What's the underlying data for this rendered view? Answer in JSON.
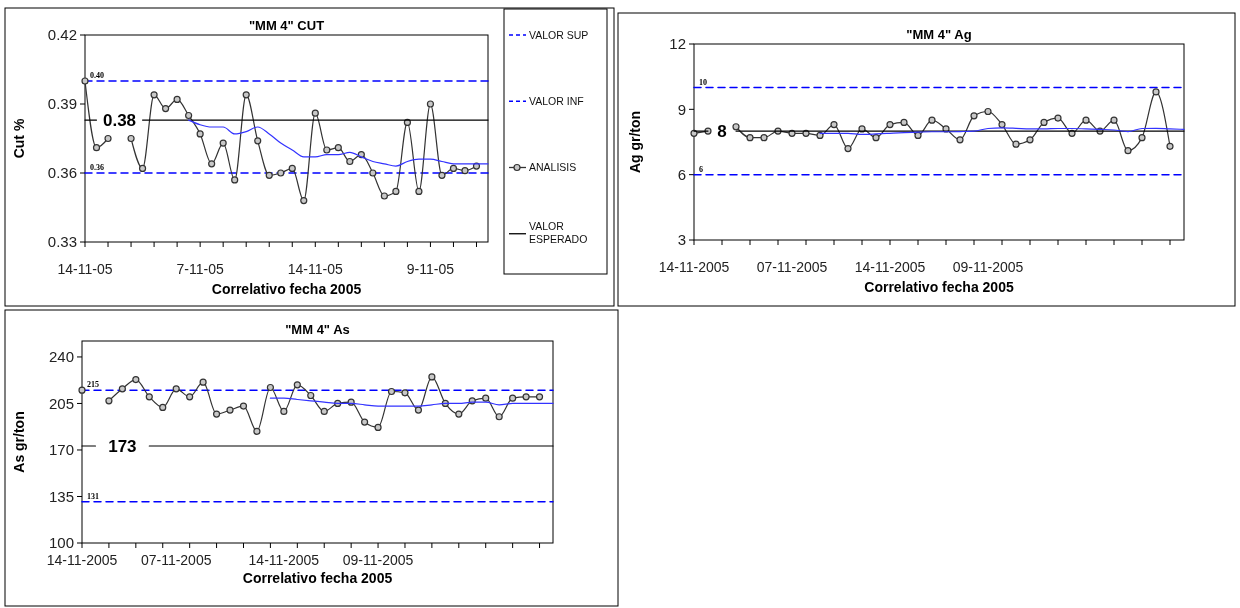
{
  "chart_data": [
    {
      "type": "line",
      "title": "\"MM 4\"  CUT",
      "xlabel": "Correlativo fecha 2005",
      "ylabel": "Cut  %",
      "categories": [
        "14-11-05",
        null,
        null,
        null,
        null,
        null,
        null,
        null,
        null,
        null,
        "7-11-05",
        null,
        null,
        null,
        null,
        null,
        null,
        null,
        null,
        null,
        "14-11-05",
        null,
        null,
        null,
        null,
        null,
        null,
        null,
        null,
        null,
        "9-11-05",
        null,
        null,
        null,
        null,
        null
      ],
      "ylim": [
        0.33,
        0.42
      ],
      "yticks": [
        0.33,
        0.36,
        0.39,
        0.42
      ],
      "legend": "right",
      "series": [
        {
          "name": "VALOR SUP",
          "color": "#0000ff",
          "line_style": "dashed",
          "marker": "none",
          "values": [
            0.4,
            0.4,
            0.4,
            0.4,
            0.4,
            0.4,
            0.4,
            0.4,
            0.4,
            0.4,
            0.4,
            0.4,
            0.4,
            0.4,
            0.4,
            0.4,
            0.4,
            0.4,
            0.4,
            0.4,
            0.4,
            0.4,
            0.4,
            0.4,
            0.4,
            0.4,
            0.4,
            0.4,
            0.4,
            0.4,
            0.4,
            0.4,
            0.4,
            0.4,
            0.4,
            0.4
          ],
          "value_labels": [
            "0.40",
            null,
            null,
            null,
            null,
            null,
            null,
            null,
            null,
            null,
            null,
            null,
            null,
            null,
            null,
            null,
            null,
            null,
            null,
            null,
            null,
            null,
            null,
            null,
            null,
            null,
            null,
            null,
            null,
            null,
            null,
            null,
            null,
            null,
            null,
            null
          ]
        },
        {
          "name": "VALOR INF",
          "color": "#0000ff",
          "line_style": "dashed",
          "marker": "none",
          "values": [
            0.36,
            0.36,
            0.36,
            0.36,
            0.36,
            0.36,
            0.36,
            0.36,
            0.36,
            0.36,
            0.36,
            0.36,
            0.36,
            0.36,
            0.36,
            0.36,
            0.36,
            0.36,
            0.36,
            0.36,
            0.36,
            0.36,
            0.36,
            0.36,
            0.36,
            0.36,
            0.36,
            0.36,
            0.36,
            0.36,
            0.36,
            0.36,
            0.36,
            0.36,
            0.36,
            0.36
          ],
          "value_labels": [
            "0.36",
            null,
            null,
            null,
            null,
            null,
            null,
            null,
            null,
            null,
            null,
            null,
            null,
            null,
            null,
            null,
            null,
            null,
            null,
            null,
            null,
            null,
            null,
            null,
            null,
            null,
            null,
            null,
            null,
            null,
            null,
            null,
            null,
            null,
            null,
            null
          ]
        },
        {
          "name": "ANALISIS",
          "color": "#333333",
          "line_style": "solid",
          "marker": "circle",
          "values": [
            0.4,
            0.371,
            0.375,
            null,
            0.375,
            0.362,
            0.394,
            0.388,
            0.392,
            0.385,
            0.377,
            0.364,
            0.373,
            0.357,
            0.394,
            0.374,
            0.359,
            0.36,
            0.362,
            0.348,
            0.386,
            0.37,
            0.371,
            0.365,
            0.368,
            0.36,
            0.35,
            0.352,
            0.382,
            0.352,
            0.39,
            0.359,
            0.362,
            0.361,
            0.363,
            null
          ]
        },
        {
          "name": "VALOR ESPERADO",
          "color": "#000000",
          "line_style": "solid",
          "marker": "none",
          "values": [
            0.383,
            0.383,
            null,
            null,
            null,
            0.383,
            0.383,
            0.383,
            0.383,
            0.383,
            0.383,
            0.383,
            0.383,
            0.383,
            0.383,
            0.383,
            0.383,
            0.383,
            0.383,
            0.383,
            0.383,
            0.383,
            0.383,
            0.383,
            0.383,
            0.383,
            0.383,
            0.383,
            0.383,
            0.383,
            0.383,
            0.383,
            0.383,
            0.383,
            0.383,
            0.383
          ],
          "value_labels": [
            null,
            null,
            null,
            "0.38",
            null,
            null,
            null,
            null,
            null,
            null,
            null,
            null,
            null,
            null,
            null,
            null,
            null,
            null,
            null,
            null,
            null,
            null,
            null,
            null,
            null,
            null,
            null,
            null,
            null,
            null,
            null,
            null,
            null,
            null,
            null,
            null
          ]
        },
        {
          "color": "#3333ff",
          "line_style": "solid",
          "marker": "none",
          "values": [
            null,
            null,
            null,
            null,
            null,
            null,
            null,
            null,
            null,
            0.383,
            0.381,
            0.38,
            0.38,
            0.377,
            0.378,
            0.38,
            0.377,
            0.373,
            0.37,
            0.367,
            0.367,
            0.368,
            0.368,
            0.369,
            0.367,
            0.365,
            0.364,
            0.363,
            0.365,
            0.366,
            0.366,
            0.365,
            0.364,
            0.364,
            0.364,
            0.364
          ]
        }
      ]
    },
    {
      "type": "line",
      "title": "\"MM 4\"  Ag",
      "xlabel": "Correlativo fecha 2005",
      "ylabel": "Ag  gr/ton",
      "categories": [
        "14-11-2005",
        null,
        null,
        null,
        null,
        null,
        null,
        "07-11-2005",
        null,
        null,
        null,
        null,
        null,
        null,
        "14-11-2005",
        null,
        null,
        null,
        null,
        null,
        null,
        "09-11-2005",
        null,
        null,
        null,
        null,
        null,
        null,
        null,
        null,
        null,
        null,
        null,
        null,
        null,
        null
      ],
      "ylim": [
        3,
        12
      ],
      "yticks": [
        3,
        6,
        9,
        12
      ],
      "series": [
        {
          "color": "#0000ff",
          "line_style": "dashed",
          "marker": "none",
          "values": [
            10,
            10,
            10,
            10,
            10,
            10,
            10,
            10,
            10,
            10,
            10,
            10,
            10,
            10,
            10,
            10,
            10,
            10,
            10,
            10,
            10,
            10,
            10,
            10,
            10,
            10,
            10,
            10,
            10,
            10,
            10,
            10,
            10,
            10,
            10,
            10
          ],
          "value_labels": [
            "10",
            null,
            null,
            null,
            null,
            null,
            null,
            null,
            null,
            null,
            null,
            null,
            null,
            null,
            null,
            null,
            null,
            null,
            null,
            null,
            null,
            null,
            null,
            null,
            null,
            null,
            null,
            null,
            null,
            null,
            null,
            null,
            null,
            null,
            null,
            null
          ]
        },
        {
          "color": "#0000ff",
          "line_style": "dashed",
          "marker": "none",
          "values": [
            6,
            6,
            6,
            6,
            6,
            6,
            6,
            6,
            6,
            6,
            6,
            6,
            6,
            6,
            6,
            6,
            6,
            6,
            6,
            6,
            6,
            6,
            6,
            6,
            6,
            6,
            6,
            6,
            6,
            6,
            6,
            6,
            6,
            6,
            6,
            6
          ],
          "value_labels": [
            "6",
            null,
            null,
            null,
            null,
            null,
            null,
            null,
            null,
            null,
            null,
            null,
            null,
            null,
            null,
            null,
            null,
            null,
            null,
            null,
            null,
            null,
            null,
            null,
            null,
            null,
            null,
            null,
            null,
            null,
            null,
            null,
            null,
            null,
            null,
            null
          ]
        },
        {
          "color": "#333333",
          "line_style": "solid",
          "marker": "circle",
          "values": [
            7.9,
            8.0,
            null,
            8.2,
            7.7,
            7.7,
            8.0,
            7.9,
            7.9,
            7.8,
            8.3,
            7.2,
            8.1,
            7.7,
            8.3,
            8.4,
            7.8,
            8.5,
            8.1,
            7.6,
            8.7,
            8.9,
            8.3,
            7.4,
            7.6,
            8.4,
            8.6,
            7.9,
            8.5,
            8.0,
            8.5,
            7.1,
            7.7,
            9.8,
            7.3,
            null
          ]
        },
        {
          "color": "#000000",
          "line_style": "solid",
          "marker": "none",
          "values": [
            8,
            8,
            null,
            8,
            8,
            8,
            8,
            8,
            8,
            8,
            8,
            8,
            8,
            8,
            8,
            8,
            8,
            8,
            8,
            8,
            8,
            8,
            8,
            8,
            8,
            8,
            8,
            8,
            8,
            8,
            8,
            8,
            8,
            8,
            8,
            8
          ],
          "value_labels": [
            null,
            null,
            "8",
            null,
            null,
            null,
            null,
            null,
            null,
            null,
            null,
            null,
            null,
            null,
            null,
            null,
            null,
            null,
            null,
            null,
            null,
            null,
            null,
            null,
            null,
            null,
            null,
            null,
            null,
            null,
            null,
            null,
            null,
            null,
            null,
            null
          ]
        },
        {
          "color": "#3333ff",
          "line_style": "solid",
          "marker": "none",
          "values": [
            null,
            null,
            null,
            null,
            null,
            null,
            null,
            null,
            null,
            7.9,
            7.9,
            7.9,
            7.85,
            7.87,
            7.9,
            7.93,
            7.95,
            7.97,
            7.97,
            7.98,
            8.0,
            8.12,
            8.15,
            8.13,
            8.1,
            8.1,
            8.12,
            8.12,
            8.1,
            8.08,
            8.05,
            7.98,
            8.12,
            8.13,
            8.1,
            8.08
          ]
        }
      ]
    },
    {
      "type": "line",
      "title": "\"MM 4\"  As",
      "xlabel": "Correlativo fecha 2005",
      "ylabel": "As  gr/ton",
      "categories": [
        "14-11-2005",
        null,
        null,
        null,
        null,
        null,
        null,
        "07-11-2005",
        null,
        null,
        null,
        null,
        null,
        null,
        null,
        "14-11-2005",
        null,
        null,
        null,
        null,
        null,
        null,
        "09-11-2005",
        null,
        null,
        null,
        null,
        null,
        null,
        null,
        null,
        null,
        null,
        null,
        null,
        null
      ],
      "ylim": [
        100,
        252
      ],
      "yticks": [
        100,
        135,
        170,
        205,
        240
      ],
      "series": [
        {
          "color": "#0000ff",
          "line_style": "dashed",
          "marker": "none",
          "values": [
            215,
            215,
            215,
            215,
            215,
            215,
            215,
            215,
            215,
            215,
            215,
            215,
            215,
            215,
            215,
            215,
            215,
            215,
            215,
            215,
            215,
            215,
            215,
            215,
            215,
            215,
            215,
            215,
            215,
            215,
            215,
            215,
            215,
            215,
            215,
            215
          ],
          "value_labels": [
            "215",
            null,
            null,
            null,
            null,
            null,
            null,
            null,
            null,
            null,
            null,
            null,
            null,
            null,
            null,
            null,
            null,
            null,
            null,
            null,
            null,
            null,
            null,
            null,
            null,
            null,
            null,
            null,
            null,
            null,
            null,
            null,
            null,
            null,
            null,
            null
          ]
        },
        {
          "color": "#0000ff",
          "line_style": "dashed",
          "marker": "none",
          "values": [
            131,
            131,
            131,
            131,
            131,
            131,
            131,
            131,
            131,
            131,
            131,
            131,
            131,
            131,
            131,
            131,
            131,
            131,
            131,
            131,
            131,
            131,
            131,
            131,
            131,
            131,
            131,
            131,
            131,
            131,
            131,
            131,
            131,
            131,
            131,
            131
          ],
          "value_labels": [
            "131",
            null,
            null,
            null,
            null,
            null,
            null,
            null,
            null,
            null,
            null,
            null,
            null,
            null,
            null,
            null,
            null,
            null,
            null,
            null,
            null,
            null,
            null,
            null,
            null,
            null,
            null,
            null,
            null,
            null,
            null,
            null,
            null,
            null,
            null,
            null
          ]
        },
        {
          "color": "#333333",
          "line_style": "solid",
          "marker": "circle",
          "values": [
            215,
            null,
            207,
            216,
            223,
            210,
            202,
            216,
            210,
            221,
            197,
            200,
            203,
            184,
            217,
            199,
            219,
            211,
            199,
            205,
            206,
            191,
            187,
            214,
            213,
            200,
            225,
            205,
            197,
            207,
            209,
            195,
            209,
            210,
            210,
            null
          ]
        },
        {
          "color": "#000000",
          "line_style": "solid",
          "marker": "none",
          "values": [
            173,
            173,
            null,
            null,
            null,
            173,
            173,
            173,
            173,
            173,
            173,
            173,
            173,
            173,
            173,
            173,
            173,
            173,
            173,
            173,
            173,
            173,
            173,
            173,
            173,
            173,
            173,
            173,
            173,
            173,
            173,
            173,
            173,
            173,
            173,
            173
          ],
          "value_labels": [
            null,
            null,
            null,
            "173",
            null,
            null,
            null,
            null,
            null,
            null,
            null,
            null,
            null,
            null,
            null,
            null,
            null,
            null,
            null,
            null,
            null,
            null,
            null,
            null,
            null,
            null,
            null,
            null,
            null,
            null,
            null,
            null,
            null,
            null,
            null,
            null
          ]
        },
        {
          "color": "#3333ff",
          "line_style": "solid",
          "marker": "none",
          "values": [
            null,
            null,
            null,
            null,
            null,
            null,
            null,
            null,
            null,
            null,
            null,
            null,
            null,
            null,
            209,
            209,
            208,
            207,
            206,
            205,
            205,
            204,
            203,
            203,
            203,
            203,
            204,
            205,
            205,
            206,
            206,
            204,
            205,
            205,
            205,
            205
          ]
        }
      ]
    }
  ]
}
